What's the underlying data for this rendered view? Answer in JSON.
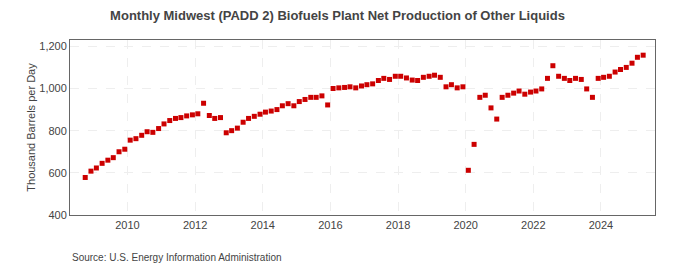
{
  "chart_data": {
    "type": "scatter",
    "title": "Monthly Midwest (PADD 2) Biofuels Plant Net Production of Other Liquids",
    "ylabel": "Thousand Barrels per Day",
    "annotations": [
      "Source: U.S. Energy Information Administration"
    ],
    "color": "#cc0000",
    "marker": "square",
    "grid": true,
    "xlim": [
      2008.3,
      2025.6
    ],
    "xticks": [
      2010,
      2012,
      2014,
      2016,
      2018,
      2020,
      2022,
      2024
    ],
    "ylim": [
      400,
      1230
    ],
    "yticks": [
      400,
      600,
      800,
      {
        "value": 1000,
        "label": "1,000"
      },
      {
        "value": 1200,
        "label": "1,200"
      }
    ],
    "x": [
      2008.75,
      2008.92,
      2009.08,
      2009.25,
      2009.42,
      2009.58,
      2009.75,
      2009.92,
      2010.08,
      2010.25,
      2010.42,
      2010.58,
      2010.75,
      2010.92,
      2011.08,
      2011.25,
      2011.42,
      2011.58,
      2011.75,
      2011.92,
      2012.08,
      2012.25,
      2012.42,
      2012.58,
      2012.75,
      2012.92,
      2013.08,
      2013.25,
      2013.42,
      2013.58,
      2013.75,
      2013.92,
      2014.08,
      2014.25,
      2014.42,
      2014.58,
      2014.75,
      2014.92,
      2015.08,
      2015.25,
      2015.42,
      2015.58,
      2015.75,
      2015.92,
      2016.08,
      2016.25,
      2016.42,
      2016.58,
      2016.75,
      2016.92,
      2017.08,
      2017.25,
      2017.42,
      2017.58,
      2017.75,
      2017.92,
      2018.08,
      2018.25,
      2018.42,
      2018.58,
      2018.75,
      2018.92,
      2019.08,
      2019.25,
      2019.42,
      2019.58,
      2019.75,
      2019.92,
      2020.08,
      2020.25,
      2020.42,
      2020.58,
      2020.75,
      2020.92,
      2021.08,
      2021.25,
      2021.42,
      2021.58,
      2021.75,
      2021.92,
      2022.08,
      2022.25,
      2022.42,
      2022.58,
      2022.75,
      2022.92,
      2023.08,
      2023.25,
      2023.42,
      2023.58,
      2023.75,
      2023.92,
      2024.08,
      2024.25,
      2024.42,
      2024.58,
      2024.75,
      2024.92,
      2025.08,
      2025.25
    ],
    "values": [
      578,
      608,
      623,
      645,
      660,
      672,
      700,
      712,
      755,
      762,
      778,
      795,
      792,
      810,
      832,
      848,
      858,
      862,
      870,
      875,
      880,
      930,
      872,
      858,
      862,
      790,
      800,
      812,
      840,
      858,
      868,
      878,
      888,
      893,
      900,
      918,
      928,
      918,
      938,
      948,
      958,
      958,
      965,
      922,
      1000,
      1003,
      1005,
      1008,
      1003,
      1012,
      1018,
      1022,
      1038,
      1048,
      1043,
      1058,
      1058,
      1050,
      1040,
      1038,
      1053,
      1058,
      1063,
      1053,
      1008,
      1018,
      1003,
      1008,
      612,
      735,
      958,
      968,
      908,
      855,
      958,
      968,
      978,
      988,
      973,
      983,
      988,
      998,
      1048,
      1108,
      1058,
      1048,
      1038,
      1048,
      1043,
      998,
      958,
      1048,
      1053,
      1058,
      1078,
      1090,
      1100,
      1120,
      1148,
      1158
    ]
  }
}
